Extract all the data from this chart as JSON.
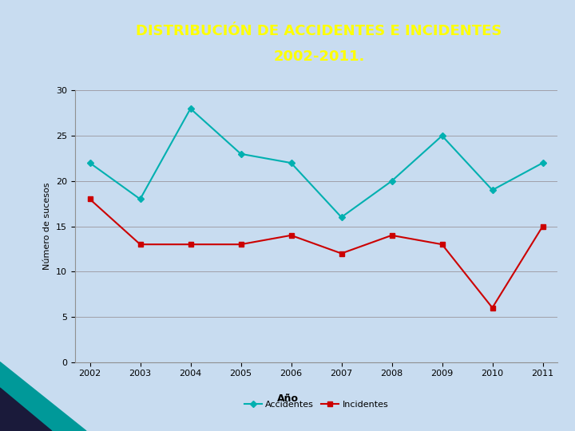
{
  "title_line1": "DISTRIBUCIÓN DE ACCIDENTES E INCIDENTES",
  "title_line2": "2002-2011.",
  "title_bg_color": "#00007F",
  "title_text_color": "#FFFF00",
  "background_color": "#C8DCF0",
  "plot_bg_color": "#C8DCF0",
  "years": [
    2002,
    2003,
    2004,
    2005,
    2006,
    2007,
    2008,
    2009,
    2010,
    2011
  ],
  "accidentes": [
    22,
    18,
    28,
    23,
    22,
    16,
    20,
    25,
    19,
    22
  ],
  "incidentes": [
    18,
    13,
    13,
    13,
    14,
    12,
    14,
    13,
    6,
    15
  ],
  "accidentes_color": "#00B0B0",
  "incidentes_color": "#CC0000",
  "ylabel": "Número de sucesos",
  "xlabel": "Año",
  "ylim": [
    0,
    30
  ],
  "yticks": [
    0,
    5,
    10,
    15,
    20,
    25,
    30
  ],
  "legend_accidentes": "Accidentes",
  "legend_incidentes": "Incidentes",
  "grid_color": "#A0A0A8",
  "marker_size": 4,
  "tick_fontsize": 8,
  "ylabel_fontsize": 8,
  "legend_fontsize": 8,
  "title_fontsize": 13
}
